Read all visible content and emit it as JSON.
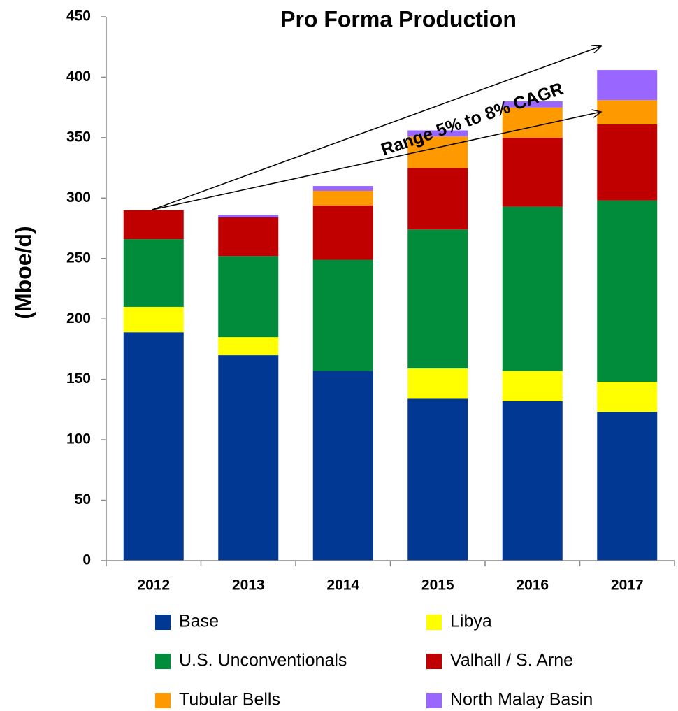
{
  "chart_data": {
    "type": "stacked_bar",
    "title": "Pro Forma Production",
    "y_label": "(Mboe/d)",
    "annotation": "Range 5% to 8% CAGR",
    "categories": [
      "2012",
      "2013",
      "2014",
      "2015",
      "2016",
      "2017"
    ],
    "series": [
      {
        "name": "Base",
        "color": "#003893",
        "values": [
          189,
          170,
          157,
          134,
          132,
          123
        ]
      },
      {
        "name": "Libya",
        "color": "#ffff00",
        "values": [
          21,
          15,
          0,
          25,
          25,
          25
        ]
      },
      {
        "name": "U.S. Unconventionals",
        "color": "#008c3a",
        "values": [
          56,
          67,
          92,
          115,
          136,
          150
        ]
      },
      {
        "name": "Valhall / S. Arne",
        "color": "#c00000",
        "values": [
          24,
          32,
          45,
          51,
          57,
          63
        ]
      },
      {
        "name": "Tubular Bells",
        "color": "#ff9900",
        "values": [
          0,
          0,
          12,
          26,
          25,
          20
        ]
      },
      {
        "name": "North Malay Basin",
        "color": "#9966ff",
        "values": [
          0,
          2,
          4,
          5,
          5,
          25
        ]
      }
    ],
    "ylim": [
      0,
      450
    ],
    "yticks": [
      0,
      50,
      100,
      150,
      200,
      250,
      300,
      350,
      400,
      450
    ]
  }
}
